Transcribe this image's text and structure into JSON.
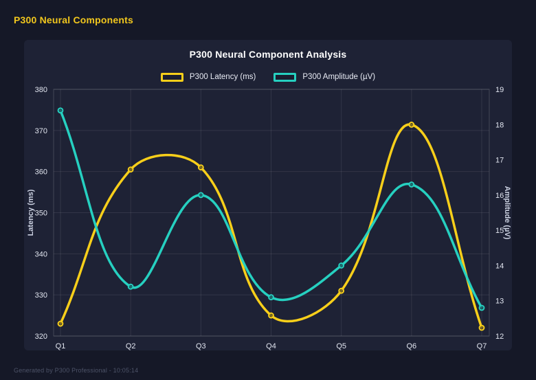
{
  "page": {
    "header_title": "P300 Neural Components",
    "footer_text": "Generated by P300 Professional - 10:05:14"
  },
  "chart_data": {
    "type": "line",
    "title": "P300 Neural Component Analysis",
    "categories": [
      "Q1",
      "Q2",
      "Q3",
      "Q4",
      "Q5",
      "Q6",
      "Q7"
    ],
    "series": [
      {
        "name": "P300 Latency (ms)",
        "axis": "left",
        "color": "#f8cf1a",
        "values": [
          323,
          360.5,
          361,
          325,
          331,
          371.4,
          322
        ]
      },
      {
        "name": "P300 Amplitude (µV)",
        "axis": "right",
        "color": "#26d0c0",
        "values": [
          18.4,
          13.4,
          16.0,
          13.1,
          14.0,
          16.3,
          12.8
        ]
      }
    ],
    "left_axis": {
      "label": "Latency (ms)",
      "min": 320,
      "max": 380,
      "step": 10
    },
    "right_axis": {
      "label": "Amplitude (µV)",
      "min": 12,
      "max": 19,
      "step": 1
    },
    "legend_position": "top",
    "grid": true,
    "line_tension": 0.4,
    "smooth": true
  },
  "theme": {
    "page_bg": "#151827",
    "card_bg": "#1e2235",
    "header_color": "#f2c71d",
    "grid_color": "rgba(255,255,255,0.09)",
    "border_color": "rgba(255,255,255,0.16)",
    "tick_color": "#e2e6f0",
    "axis_title_color": "#ccd2e2",
    "footer_color": "#4d5368"
  }
}
